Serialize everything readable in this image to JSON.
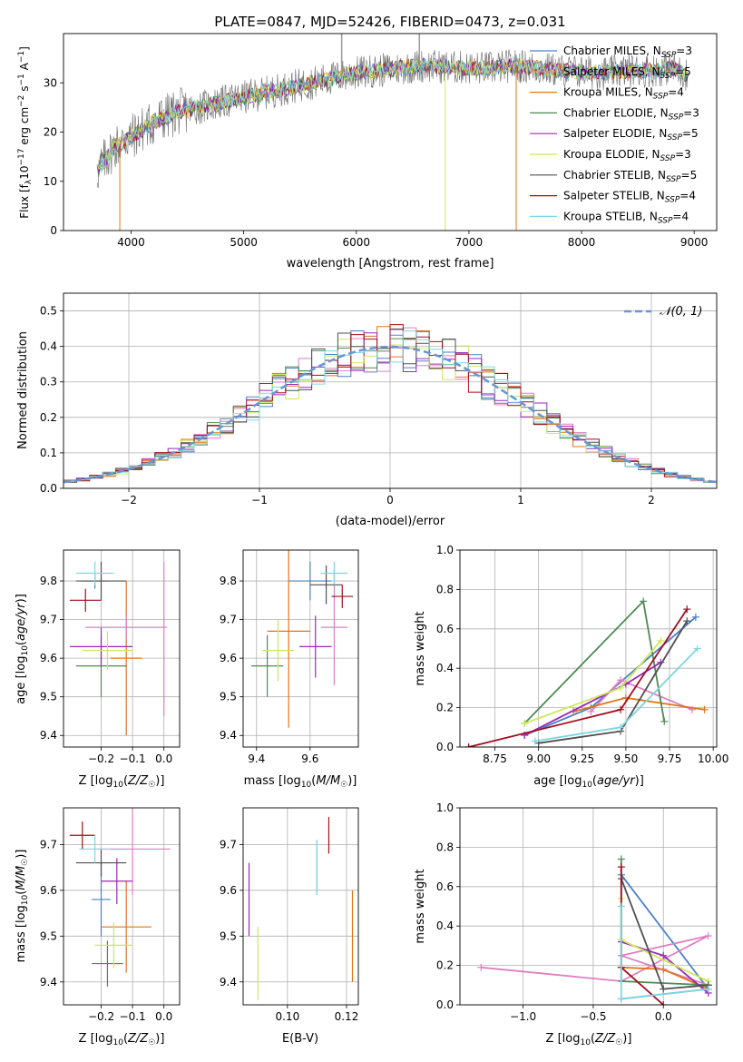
{
  "figure_title": "PLATE=0847, MJD=52426, FIBERID=0473, z=0.031",
  "colors": {
    "Chabrier MILES": "#4a82c8",
    "Salpeter MILES": "#e07fc0",
    "Kroupa MILES": "#e0741a",
    "Chabrier ELODIE": "#4f8a55",
    "Salpeter ELODIE": "#9b29b8",
    "Kroupa ELODIE": "#cde85a",
    "Chabrier STELIB": "#505050",
    "Salpeter STELIB": "#a00f1e",
    "Kroupa STELIB": "#7dd6e0",
    "normal_curve": "#6a94d4",
    "grid": "#b0b0b0",
    "data_spectrum": "#9a9a9a"
  },
  "chart_data": [
    {
      "id": "spectrum",
      "type": "line",
      "xlabel": "wavelength [Angstrom, rest frame]",
      "ylabel_parts": [
        "Flux [f",
        "λ",
        "10",
        "−17",
        " erg cm",
        "−2",
        " s",
        "−1",
        " A",
        "−1",
        "]"
      ],
      "xlim": [
        3400,
        9200
      ],
      "ylim": [
        0,
        40
      ],
      "xticks": [
        4000,
        5000,
        6000,
        7000,
        8000,
        9000
      ],
      "yticks": [
        0,
        10,
        20,
        30
      ],
      "grid": false,
      "legend_position": "top-right",
      "legend": [
        {
          "name": "Chabrier MILES",
          "nssp": "3"
        },
        {
          "name": "Salpeter MILES",
          "nssp": "5"
        },
        {
          "name": "Kroupa MILES",
          "nssp": "4"
        },
        {
          "name": "Chabrier ELODIE",
          "nssp": "3"
        },
        {
          "name": "Salpeter ELODIE",
          "nssp": "5"
        },
        {
          "name": "Kroupa ELODIE",
          "nssp": "3"
        },
        {
          "name": "Chabrier STELIB",
          "nssp": "5"
        },
        {
          "name": "Salpeter STELIB",
          "nssp": "4"
        },
        {
          "name": "Kroupa STELIB",
          "nssp": "4"
        }
      ],
      "legend_label_sub": "SSP",
      "continuum": [
        [
          3700,
          12
        ],
        [
          3850,
          17
        ],
        [
          4000,
          19
        ],
        [
          4200,
          22
        ],
        [
          4400,
          24
        ],
        [
          4600,
          25
        ],
        [
          4800,
          26
        ],
        [
          5000,
          27
        ],
        [
          5200,
          28
        ],
        [
          5400,
          29
        ],
        [
          5600,
          30
        ],
        [
          5800,
          31
        ],
        [
          6000,
          32
        ],
        [
          6200,
          32.5
        ],
        [
          6400,
          33
        ],
        [
          6600,
          33.5
        ],
        [
          6800,
          33.2
        ],
        [
          7000,
          33
        ],
        [
          7200,
          33
        ],
        [
          7400,
          33.5
        ],
        [
          7600,
          33
        ],
        [
          7800,
          32.5
        ],
        [
          8000,
          32.2
        ],
        [
          8200,
          32
        ],
        [
          8400,
          32.5
        ],
        [
          8600,
          32.5
        ],
        [
          8800,
          33
        ],
        [
          8950,
          31.5
        ]
      ],
      "drops": [
        {
          "series": "Kroupa MILES",
          "x": 3900
        },
        {
          "series": "Kroupa ELODIE",
          "x": 6790
        },
        {
          "series": "Kroupa MILES",
          "x": 7420
        }
      ],
      "spikes": [
        {
          "x": 6560,
          "y": 40
        },
        {
          "x": 5870,
          "y": 40
        }
      ]
    },
    {
      "id": "residual_histogram",
      "type": "bar",
      "xlabel": "(data-model)/error",
      "ylabel": "Normed distribution",
      "xlim": [
        -2.5,
        2.5
      ],
      "ylim": [
        0,
        0.55
      ],
      "xticks": [
        -2,
        -1,
        0,
        1,
        2
      ],
      "yticks": [
        0.0,
        0.1,
        0.2,
        0.3,
        0.4,
        0.5
      ],
      "grid": true,
      "legend_position": "top-right",
      "legend": [
        "𝒩(0, 1)"
      ],
      "bin_width": 0.1
    },
    {
      "id": "age_vs_Z",
      "type": "scatter",
      "xlabel": "Z [log10(Z/Z☉)]",
      "ylabel": "age [log10(age/yr)]",
      "xlim": [
        -0.32,
        0.05
      ],
      "ylim": [
        9.37,
        9.88
      ],
      "xticks": [
        -0.2,
        -0.1,
        0.0
      ],
      "yticks": [
        9.4,
        9.5,
        9.6,
        9.7,
        9.8
      ],
      "grid": true,
      "points": [
        {
          "series": "Chabrier MILES",
          "x": -0.22,
          "xerr": 0.04,
          "y": 9.8,
          "yerr": 0.02
        },
        {
          "series": "Salpeter MILES",
          "x": 0.0,
          "xerr": 0.0,
          "y": 9.65,
          "yerr": 0.2
        },
        {
          "series": "Kroupa MILES",
          "x": -0.12,
          "xerr": 0.05,
          "y": 9.6,
          "yerr": 0.2
        },
        {
          "series": "Chabrier ELODIE",
          "x": -0.2,
          "xerr": 0.08,
          "y": 9.58,
          "yerr": 0.08
        },
        {
          "series": "Salpeter ELODIE",
          "x": -0.2,
          "xerr": 0.1,
          "y": 9.63,
          "yerr": 0.05
        },
        {
          "series": "Kroupa ELODIE",
          "x": -0.18,
          "xerr": 0.08,
          "y": 9.62,
          "yerr": 0.05
        },
        {
          "series": "Chabrier STELIB",
          "x": -0.2,
          "xerr": 0.08,
          "y": 9.8,
          "yerr": 0.05
        },
        {
          "series": "Salpeter STELIB",
          "x": -0.25,
          "xerr": 0.05,
          "y": 9.75,
          "yerr": 0.03
        },
        {
          "series": "Kroupa STELIB",
          "x": -0.22,
          "xerr": 0.06,
          "y": 9.82,
          "yerr": 0.03
        },
        {
          "series": "Salpeter MILES",
          "x": -0.12,
          "xerr": 0.13,
          "y": 9.68,
          "yerr": 0.03
        }
      ]
    },
    {
      "id": "age_vs_mass",
      "type": "scatter",
      "xlabel": "mass [log10(M/M☉)]",
      "ylabel": "",
      "xlim": [
        9.35,
        9.78
      ],
      "ylim": [
        9.37,
        9.88
      ],
      "xticks": [
        9.4,
        9.6
      ],
      "yticks": [
        9.4,
        9.5,
        9.6,
        9.7,
        9.8
      ],
      "grid": true,
      "points": [
        {
          "series": "Chabrier MILES",
          "x": 9.6,
          "xerr": 0.08,
          "y": 9.8,
          "yerr": 0.05
        },
        {
          "series": "Salpeter MILES",
          "x": 9.69,
          "xerr": 0.05,
          "y": 9.68,
          "yerr": 0.15
        },
        {
          "series": "Kroupa MILES",
          "x": 9.52,
          "xerr": 0.08,
          "y": 9.67,
          "yerr": 0.25
        },
        {
          "series": "Chabrier ELODIE",
          "x": 9.44,
          "xerr": 0.06,
          "y": 9.58,
          "yerr": 0.08
        },
        {
          "series": "Salpeter ELODIE",
          "x": 9.62,
          "xerr": 0.06,
          "y": 9.63,
          "yerr": 0.08
        },
        {
          "series": "Kroupa ELODIE",
          "x": 9.48,
          "xerr": 0.06,
          "y": 9.62,
          "yerr": 0.08
        },
        {
          "series": "Chabrier STELIB",
          "x": 9.66,
          "xerr": 0.06,
          "y": 9.79,
          "yerr": 0.05
        },
        {
          "series": "Salpeter STELIB",
          "x": 9.72,
          "xerr": 0.04,
          "y": 9.76,
          "yerr": 0.03
        },
        {
          "series": "Kroupa STELIB",
          "x": 9.69,
          "xerr": 0.05,
          "y": 9.82,
          "yerr": 0.03
        }
      ]
    },
    {
      "id": "weight_vs_age",
      "type": "line",
      "xlabel": "age [log10(age/yr)]",
      "ylabel": "mass weight",
      "xlim": [
        8.55,
        10.02
      ],
      "ylim": [
        0,
        1
      ],
      "xticks": [
        8.75,
        9.0,
        9.25,
        9.5,
        9.75,
        10.0
      ],
      "yticks": [
        0.0,
        0.2,
        0.4,
        0.6,
        0.8,
        1.0
      ],
      "grid": true,
      "series": [
        {
          "name": "Chabrier MILES",
          "x": [
            8.92,
            9.3,
            9.9
          ],
          "y": [
            0.06,
            0.2,
            0.66
          ]
        },
        {
          "name": "Salpeter MILES",
          "x": [
            9.3,
            9.47,
            9.88
          ],
          "y": [
            0.18,
            0.34,
            0.19
          ]
        },
        {
          "name": "Kroupa MILES",
          "x": [
            9.2,
            9.5,
            9.95
          ],
          "y": [
            0.18,
            0.25,
            0.19
          ]
        },
        {
          "name": "Chabrier ELODIE",
          "x": [
            8.92,
            9.6,
            9.72
          ],
          "y": [
            0.12,
            0.74,
            0.13
          ]
        },
        {
          "name": "Salpeter ELODIE",
          "x": [
            8.92,
            9.5,
            9.7
          ],
          "y": [
            0.06,
            0.32,
            0.43
          ]
        },
        {
          "name": "Kroupa ELODIE",
          "x": [
            8.92,
            9.47,
            9.7
          ],
          "y": [
            0.12,
            0.3,
            0.54
          ]
        },
        {
          "name": "Chabrier STELIB",
          "x": [
            9.0,
            9.47,
            9.85
          ],
          "y": [
            0.02,
            0.08,
            0.64
          ]
        },
        {
          "name": "Salpeter STELIB",
          "x": [
            8.6,
            9.47,
            9.85
          ],
          "y": [
            0.0,
            0.19,
            0.7
          ]
        },
        {
          "name": "Kroupa STELIB",
          "x": [
            8.98,
            9.47,
            9.91
          ],
          "y": [
            0.03,
            0.1,
            0.5
          ]
        }
      ]
    },
    {
      "id": "mass_vs_Z",
      "type": "scatter",
      "xlabel": "Z [log10(Z/Z☉)]",
      "ylabel": "mass [log10(M/M☉)]",
      "xlim": [
        -0.32,
        0.05
      ],
      "ylim": [
        9.35,
        9.78
      ],
      "xticks": [
        -0.2,
        -0.1,
        0.0
      ],
      "yticks": [
        9.4,
        9.5,
        9.6,
        9.7
      ],
      "grid": true,
      "points": [
        {
          "series": "Chabrier MILES",
          "x": -0.2,
          "xerr": 0.03,
          "y": 9.58,
          "yerr": 0.08
        },
        {
          "series": "Salpeter MILES",
          "x": -0.1,
          "xerr": 0.12,
          "y": 9.69,
          "yerr": 0.1
        },
        {
          "series": "Kroupa MILES",
          "x": -0.12,
          "xerr": 0.08,
          "y": 9.52,
          "yerr": 0.1
        },
        {
          "series": "Chabrier ELODIE",
          "x": -0.18,
          "xerr": 0.05,
          "y": 9.44,
          "yerr": 0.05
        },
        {
          "series": "Salpeter ELODIE",
          "x": -0.15,
          "xerr": 0.05,
          "y": 9.62,
          "yerr": 0.05
        },
        {
          "series": "Kroupa ELODIE",
          "x": -0.16,
          "xerr": 0.06,
          "y": 9.48,
          "yerr": 0.05
        },
        {
          "series": "Chabrier STELIB",
          "x": -0.2,
          "xerr": 0.08,
          "y": 9.66,
          "yerr": 0.03
        },
        {
          "series": "Salpeter STELIB",
          "x": -0.26,
          "xerr": 0.04,
          "y": 9.72,
          "yerr": 0.03
        },
        {
          "series": "Kroupa STELIB",
          "x": -0.22,
          "xerr": 0.05,
          "y": 9.69,
          "yerr": 0.03
        }
      ]
    },
    {
      "id": "mass_vs_ebv",
      "type": "scatter",
      "xlabel": "E(B-V)",
      "ylabel": "",
      "xlim": [
        0.085,
        0.124
      ],
      "ylim": [
        9.35,
        9.78
      ],
      "xticks": [
        0.1,
        0.12
      ],
      "yticks": [
        9.4,
        9.5,
        9.6,
        9.7
      ],
      "grid": true,
      "points": [
        {
          "series": "Salpeter ELODIE",
          "x": 0.087,
          "y": 9.58,
          "yerr": 0.08
        },
        {
          "series": "Kroupa ELODIE",
          "x": 0.09,
          "y": 9.44,
          "yerr": 0.08
        },
        {
          "series": "Chabrier MILES",
          "x": 0.11,
          "y": 9.65,
          "yerr": 0.06
        },
        {
          "series": "Kroupa STELIB",
          "x": 0.11,
          "y": 9.65,
          "yerr": 0.06
        },
        {
          "series": "Salpeter STELIB",
          "x": 0.114,
          "y": 9.72,
          "yerr": 0.04
        },
        {
          "series": "Kroupa MILES",
          "x": 0.122,
          "y": 9.5,
          "yerr": 0.1
        }
      ]
    },
    {
      "id": "weight_vs_Z",
      "type": "line",
      "xlabel": "Z [log10(Z/Z☉)]",
      "ylabel": "mass weight",
      "xlim": [
        -1.45,
        0.38
      ],
      "ylim": [
        0,
        1
      ],
      "xticks": [
        -1.0,
        -0.5,
        0.0
      ],
      "yticks": [
        0.0,
        0.2,
        0.4,
        0.6,
        0.8,
        1.0
      ],
      "grid": true,
      "series": [
        {
          "name": "Chabrier MILES",
          "x": [
            -0.3,
            0.32,
            -0.3
          ],
          "y": [
            0.66,
            0.08,
            0.03
          ]
        },
        {
          "name": "Salpeter MILES",
          "x": [
            -1.3,
            -0.3,
            0.32,
            -0.3,
            0.32
          ],
          "y": [
            0.19,
            0.12,
            0.35,
            0.25,
            0.1
          ]
        },
        {
          "name": "Kroupa MILES",
          "x": [
            -0.3,
            0.0,
            0.32
          ],
          "y": [
            0.19,
            0.18,
            0.08
          ]
        },
        {
          "name": "Chabrier ELODIE",
          "x": [
            -0.3,
            -0.3,
            0.32
          ],
          "y": [
            0.74,
            0.12,
            0.1
          ]
        },
        {
          "name": "Salpeter ELODIE",
          "x": [
            -0.3,
            0.0,
            0.32
          ],
          "y": [
            0.32,
            0.25,
            0.06
          ]
        },
        {
          "name": "Kroupa ELODIE",
          "x": [
            -0.3,
            -0.3,
            0.32
          ],
          "y": [
            0.54,
            0.33,
            0.12
          ]
        },
        {
          "name": "Chabrier STELIB",
          "x": [
            -0.3,
            0.0,
            0.32
          ],
          "y": [
            0.64,
            0.08,
            0.1
          ]
        },
        {
          "name": "Salpeter STELIB",
          "x": [
            -0.3,
            -0.3,
            0.0
          ],
          "y": [
            0.7,
            0.19,
            0.0
          ]
        },
        {
          "name": "Kroupa STELIB",
          "x": [
            -0.3,
            -0.3,
            0.32
          ],
          "y": [
            0.5,
            0.03,
            0.08
          ]
        }
      ]
    }
  ]
}
